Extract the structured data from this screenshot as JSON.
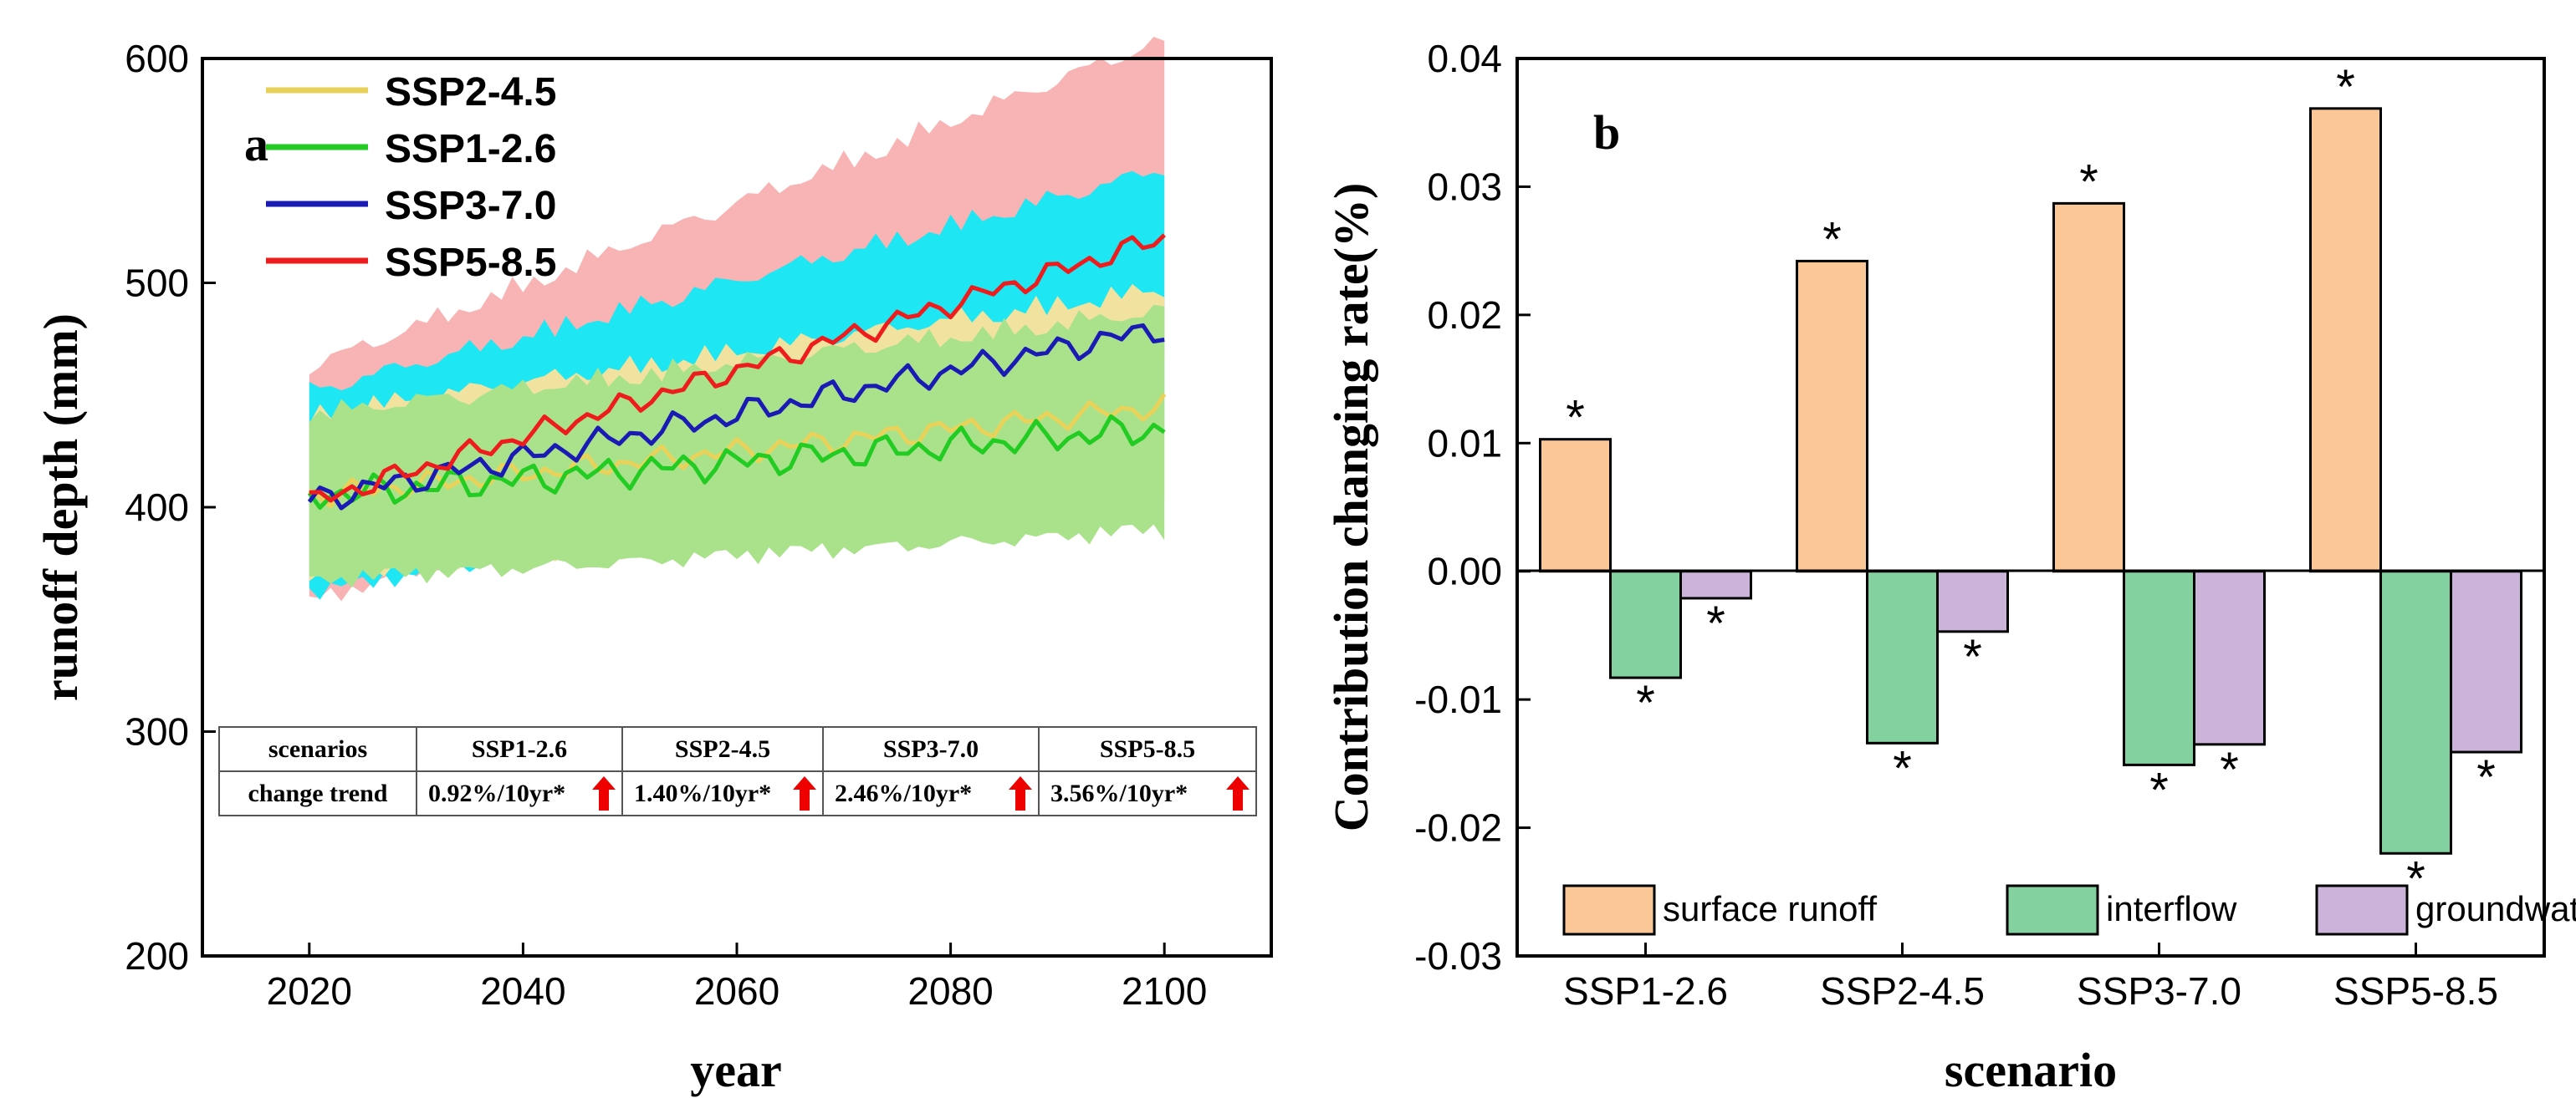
{
  "chart_data": [
    {
      "panel_label": "a",
      "type": "line",
      "xlabel": "year",
      "ylabel": "runoff depth (mm)",
      "xlim": [
        2010,
        2110
      ],
      "ylim": [
        200,
        600
      ],
      "xticks": [
        2020,
        2040,
        2060,
        2080,
        2100
      ],
      "yticks": [
        200,
        300,
        400,
        500,
        600
      ],
      "x_start": 2020,
      "x_end": 2100,
      "series": [
        {
          "name": "SSP2-4.5",
          "color": "#e8d25a",
          "band_color": "#f2e2a0",
          "start": 405,
          "end": 445,
          "amp": 6,
          "band_lo": 35,
          "band_hi": 40
        },
        {
          "name": "SSP1-2.6",
          "color": "#22cc22",
          "band_color": "#aae28c",
          "start": 405,
          "end": 435,
          "amp": 8,
          "band_lo": 38,
          "band_hi": 40
        },
        {
          "name": "SSP3-7.0",
          "color": "#1a1ab4",
          "band_color": "#1ee6f2",
          "start": 403,
          "end": 480,
          "amp": 7,
          "band_lo": 42,
          "band_hi": 55
        },
        {
          "name": "SSP5-8.5",
          "color": "#ee1c1c",
          "band_color": "#f8b4b4",
          "start": 402,
          "end": 520,
          "amp": 6,
          "band_lo": 45,
          "band_hi": 70
        }
      ],
      "table": {
        "header_label": "scenarios",
        "row_label": "change trend",
        "columns": [
          "SSP1-2.6",
          "SSP2-4.5",
          "SSP3-7.0",
          "SSP5-8.5"
        ],
        "values": [
          "0.92%/10yr*",
          "1.40%/10yr*",
          "2.46%/10yr*",
          "3.56%/10yr*"
        ]
      }
    },
    {
      "panel_label": "b",
      "type": "bar",
      "xlabel": "scenario",
      "ylabel": "Contribution changing rate(%)",
      "categories": [
        "SSP1-2.6",
        "SSP2-4.5",
        "SSP3-7.0",
        "SSP5-8.5"
      ],
      "ylim": [
        -0.03,
        0.04
      ],
      "yticks": [
        "-0.03",
        "-0.02",
        "-0.01",
        "0.00",
        "0.01",
        "0.02",
        "0.03",
        "0.04"
      ],
      "significance_mark": "*",
      "series": [
        {
          "name": "surface runoff",
          "color": "#fbc796",
          "values": [
            0.0103,
            0.0242,
            0.0287,
            0.0361
          ]
        },
        {
          "name": "interflow",
          "color": "#82d19e",
          "values": [
            -0.0083,
            -0.0134,
            -0.0151,
            -0.022
          ]
        },
        {
          "name": "groundwater",
          "color": "#cbb3d9",
          "values": [
            -0.0021,
            -0.0047,
            -0.0135,
            -0.0141
          ]
        }
      ]
    }
  ]
}
